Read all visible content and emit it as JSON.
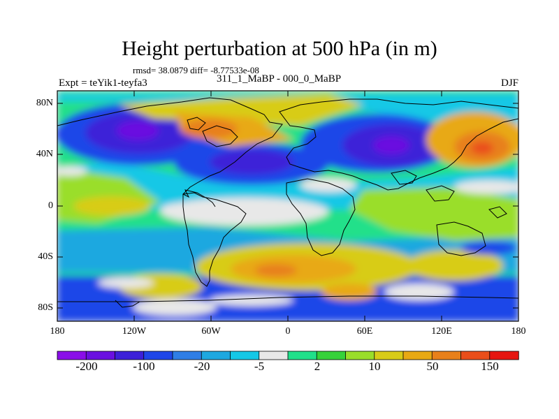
{
  "header": {
    "title": "Height perturbation at 500 hPa (in m)",
    "stats": "rmsd= 38.0879 diff= -8.77533e-08",
    "left_label": "Expt = teYik1-teyfa3",
    "center_label": "311_1_MaBP - 000_0_MaBP",
    "right_label": "DJF"
  },
  "axes": {
    "lat_labels": [
      "80N",
      "40N",
      "0",
      "40S",
      "80S"
    ],
    "lon_labels": [
      "180",
      "120W",
      "60W",
      "0",
      "60E",
      "120E",
      "180"
    ]
  },
  "colorbar": {
    "labels": [
      "-200",
      "-100",
      "-20",
      "-5",
      "2",
      "10",
      "50",
      "150"
    ],
    "colors": [
      "#8a0ee8",
      "#6a10e0",
      "#3d20d8",
      "#1f46e8",
      "#2f7ee6",
      "#1ea8e0",
      "#15c8e6",
      "#e8e8e8",
      "#20e08a",
      "#36d23a",
      "#9ade2a",
      "#d8cc18",
      "#e8a914",
      "#e8801a",
      "#ea4e1a",
      "#e61510"
    ]
  },
  "map": {
    "colors": {
      "background": "#e8e8e8",
      "outline": "#000000",
      "coast": "#000000"
    }
  }
}
